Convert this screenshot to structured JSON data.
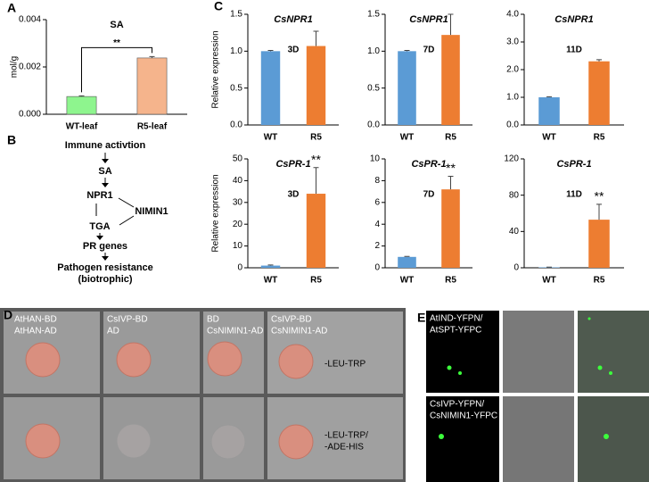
{
  "chart_data": [
    {
      "type": "bar",
      "title": "SA",
      "ylabel": "mol/g",
      "categories": [
        "WT-leaf",
        "R5-leaf"
      ],
      "values": [
        0.00075,
        0.00238
      ],
      "errors": [
        3e-05,
        6e-05
      ],
      "colors": [
        "#8ef58e",
        "#f5b48c"
      ],
      "ylim": [
        0,
        0.004
      ],
      "yticks": [
        {
          "value": 0,
          "label": "0.000"
        },
        {
          "value": 0.002,
          "label": "0.002"
        },
        {
          "value": 0.004,
          "label": "0.004"
        }
      ],
      "annotation": "**",
      "bracket": true
    },
    {
      "type": "bar",
      "title": "CsNPR1",
      "subtitle": "3D",
      "ylabel": "Relative expression",
      "categories": [
        "WT",
        "R5"
      ],
      "values": [
        1.0,
        1.07
      ],
      "errors": [
        0.01,
        0.2
      ],
      "colors": [
        "#5b9bd5",
        "#ed7d31"
      ],
      "ylim": [
        0,
        1.5
      ],
      "yticks": [
        {
          "value": 0,
          "label": "0.0"
        },
        0.5,
        {
          "value": 1,
          "label": "1.0"
        },
        1.5
      ]
    },
    {
      "type": "bar",
      "title": "CsNPR1",
      "subtitle": "7D",
      "categories": [
        "WT",
        "R5"
      ],
      "values": [
        1.0,
        1.22
      ],
      "errors": [
        0.01,
        0.28
      ],
      "colors": [
        "#5b9bd5",
        "#ed7d31"
      ],
      "ylim": [
        0,
        1.5
      ],
      "yticks": [
        {
          "value": 0,
          "label": "0.0"
        },
        0.5,
        {
          "value": 1,
          "label": "1.0"
        },
        1.5
      ]
    },
    {
      "type": "bar",
      "title": "CsNPR1",
      "subtitle": "11D",
      "categories": [
        "WT",
        "R5"
      ],
      "values": [
        1.0,
        2.3
      ],
      "errors": [
        0.02,
        0.06
      ],
      "colors": [
        "#5b9bd5",
        "#ed7d31"
      ],
      "ylim": [
        0,
        4
      ],
      "yticks": [
        {
          "value": 0,
          "label": "0.0"
        },
        {
          "value": 1,
          "label": "1.0"
        },
        {
          "value": 2,
          "label": "2.0"
        },
        {
          "value": 3,
          "label": "3.0"
        },
        {
          "value": 4,
          "label": "4.0"
        }
      ]
    },
    {
      "type": "bar",
      "title": "CsPR-1",
      "subtitle": "3D",
      "ylabel": "Relative expression",
      "categories": [
        "WT",
        "R5"
      ],
      "values": [
        1,
        34
      ],
      "errors": [
        0.3,
        12
      ],
      "colors": [
        "#5b9bd5",
        "#ed7d31"
      ],
      "ylim": [
        0,
        50
      ],
      "yticks": [
        0,
        10,
        20,
        30,
        40,
        50
      ],
      "annotation": "**"
    },
    {
      "type": "bar",
      "title": "CsPR-1",
      "subtitle": "7D",
      "categories": [
        "WT",
        "R5"
      ],
      "values": [
        1.0,
        7.2
      ],
      "errors": [
        0.05,
        1.2
      ],
      "colors": [
        "#5b9bd5",
        "#ed7d31"
      ],
      "ylim": [
        0,
        10
      ],
      "yticks": [
        0,
        2,
        4,
        6,
        8,
        10
      ],
      "annotation": "**"
    },
    {
      "type": "bar",
      "title": "CsPR-1",
      "subtitle": "11D",
      "categories": [
        "WT",
        "R5"
      ],
      "values": [
        0.5,
        53
      ],
      "errors": [
        0.2,
        17
      ],
      "colors": [
        "#5b9bd5",
        "#ed7d31"
      ],
      "ylim": [
        0,
        120
      ],
      "yticks": [
        0,
        40,
        80,
        120
      ],
      "annotation": "**"
    }
  ],
  "panel_labels": [
    "A",
    "B",
    "C",
    "D",
    "E"
  ],
  "diagram": {
    "nodes": [
      "Immune activtion",
      "SA",
      "NPR1",
      "NIMIN1",
      "TGA",
      "PR genes",
      "Pathogen resistance",
      "(biotrophic)"
    ]
  },
  "yeast_assay": {
    "columns": [
      [
        "AtHAN-BD",
        "AtHAN-AD"
      ],
      [
        "CsIVP-BD",
        "AD"
      ],
      [
        "BD",
        "CsNIMIN1-AD"
      ],
      [
        "CsIVP-BD",
        "CsNIMIN1-AD"
      ]
    ],
    "rows": [
      [
        "-LEU-TRP"
      ],
      [
        "-LEU-TRP/",
        "-ADE-HIS"
      ]
    ]
  },
  "bifc": {
    "rows": [
      [
        "AtIND-YFPN/",
        "AtSPT-YFPC"
      ],
      [
        "CsIVP-YFPN/",
        "CsNIMIN1-YFPC"
      ]
    ]
  }
}
